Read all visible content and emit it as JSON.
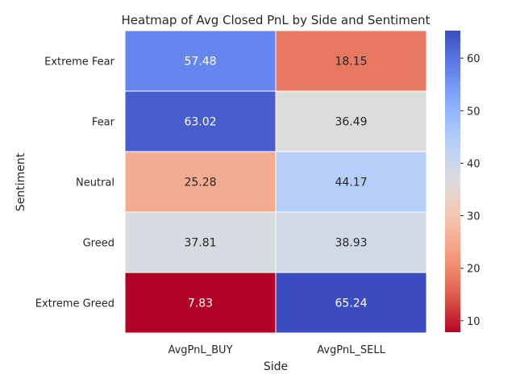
{
  "chart_data": {
    "type": "heatmap",
    "title": "Heatmap of Avg Closed PnL by Side and Sentiment",
    "xlabel": "Side",
    "ylabel": "Sentiment",
    "columns": [
      "AvgPnL_BUY",
      "AvgPnL_SELL"
    ],
    "rows": [
      "Extreme Fear",
      "Fear",
      "Neutral",
      "Greed",
      "Extreme Greed"
    ],
    "values": [
      [
        57.48,
        18.15
      ],
      [
        63.02,
        36.49
      ],
      [
        25.28,
        44.17
      ],
      [
        37.81,
        38.93
      ],
      [
        7.83,
        65.24
      ]
    ],
    "annotations": [
      [
        "57.48",
        "18.15"
      ],
      [
        "63.02",
        "36.49"
      ],
      [
        "25.28",
        "44.17"
      ],
      [
        "37.81",
        "38.93"
      ],
      [
        "7.83",
        "65.24"
      ]
    ],
    "colormap": "coolwarm",
    "vmin": 7.83,
    "vmax": 65.24,
    "colorbar_ticks": [
      10,
      20,
      30,
      40,
      50,
      60
    ],
    "colorbar_tick_labels": [
      "10",
      "20",
      "30",
      "40",
      "50",
      "60"
    ],
    "grid": false,
    "cell_border_color": "#ffffff"
  }
}
